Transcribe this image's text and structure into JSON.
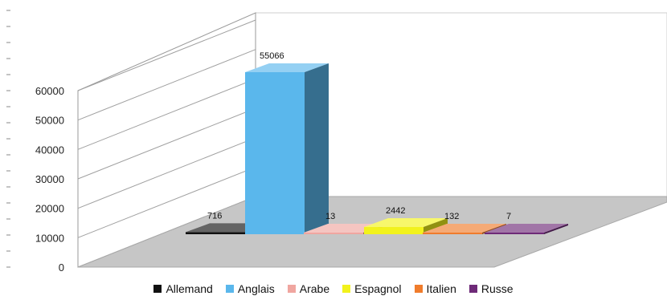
{
  "chart_data": {
    "type": "bar",
    "title": "",
    "xlabel": "",
    "ylabel": "",
    "ylim": [
      0,
      60000
    ],
    "yticks": [
      "0",
      "10000",
      "20000",
      "30000",
      "40000",
      "50000",
      "60000"
    ],
    "grid": true,
    "legend_position": "bottom",
    "categories": [
      "Allemand",
      "Anglais",
      "Arabe",
      "Espagnol",
      "Italien",
      "Russe"
    ],
    "values": [
      716,
      55066,
      13,
      2442,
      132,
      7
    ],
    "data_labels": [
      "716",
      "55066",
      "13",
      "2442",
      "132",
      "7"
    ],
    "colors": [
      "#111111",
      "#5ab7ec",
      "#f0a6a0",
      "#f2f21c",
      "#f07c2c",
      "#6e2a78"
    ]
  }
}
